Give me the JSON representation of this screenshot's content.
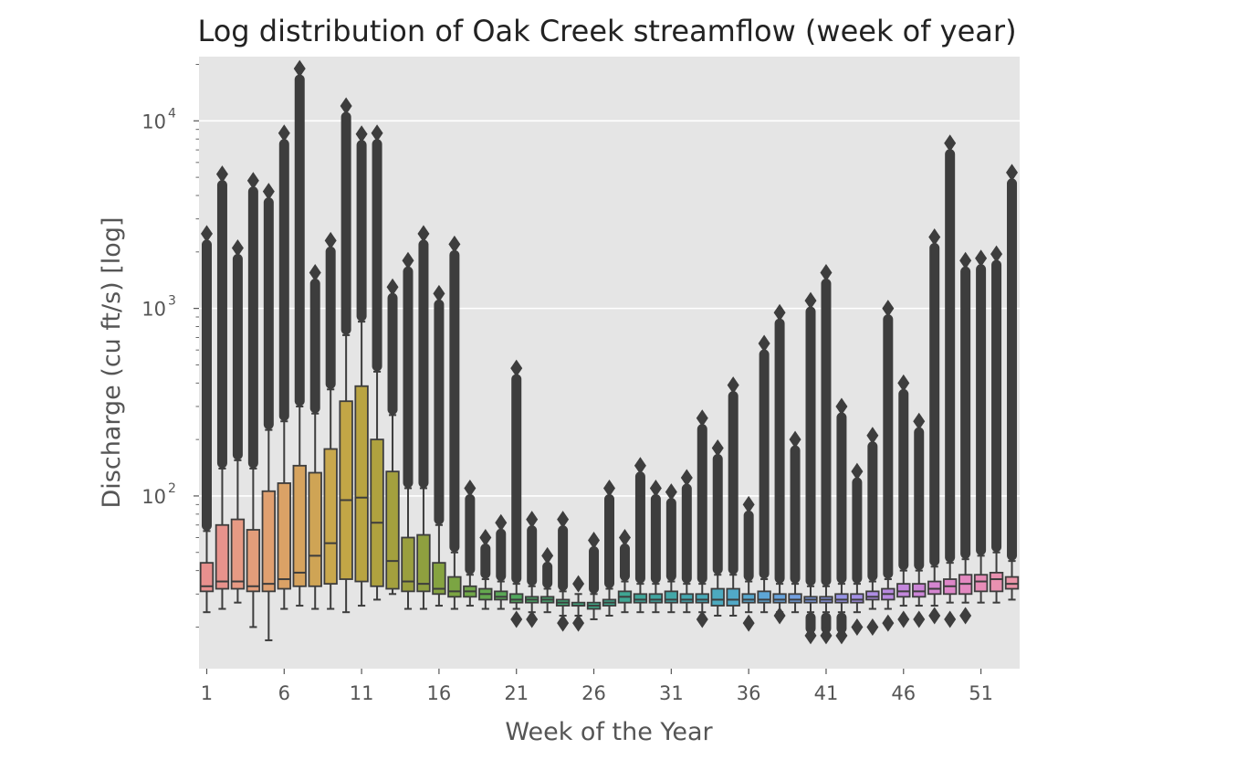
{
  "chart_data": {
    "type": "box",
    "title": "Log distribution of Oak Creek streamflow (week of year)",
    "xlabel": "Week of the Year",
    "ylabel": "Discharge (cu ft/s) [log]",
    "yscale": "log",
    "ylim": [
      12,
      22000
    ],
    "y_ticks": [
      {
        "value": 100,
        "base": "10",
        "exp": "2"
      },
      {
        "value": 1000,
        "base": "10",
        "exp": "3"
      },
      {
        "value": 10000,
        "base": "10",
        "exp": "4"
      }
    ],
    "x_tick_labels": [
      "1",
      "6",
      "11",
      "16",
      "21",
      "26",
      "31",
      "36",
      "41",
      "46",
      "51"
    ],
    "grid": true,
    "background": "#e5e5e5",
    "outlier_color": "#3d3d3d",
    "boxes": [
      {
        "week": 1,
        "q1": 31,
        "median": 33,
        "q3": 44,
        "lo": 24,
        "hi": 65,
        "hi_out": 2500,
        "lo_out": null,
        "color": "#e8908e"
      },
      {
        "week": 2,
        "q1": 32,
        "median": 35,
        "q3": 70,
        "lo": 25,
        "hi": 140,
        "hi_out": 5200,
        "lo_out": null,
        "color": "#e7928c"
      },
      {
        "week": 3,
        "q1": 32,
        "median": 35,
        "q3": 75,
        "lo": 27,
        "hi": 155,
        "hi_out": 2100,
        "lo_out": null,
        "color": "#e79a84"
      },
      {
        "week": 4,
        "q1": 31,
        "median": 33,
        "q3": 66,
        "lo": 20,
        "hi": 140,
        "hi_out": 4800,
        "lo_out": null,
        "color": "#e29d7a"
      },
      {
        "week": 5,
        "q1": 31,
        "median": 34,
        "q3": 106,
        "lo": 17,
        "hi": 225,
        "hi_out": 4200,
        "lo_out": null,
        "color": "#e0a070"
      },
      {
        "week": 6,
        "q1": 32,
        "median": 36,
        "q3": 117,
        "lo": 25,
        "hi": 250,
        "hi_out": 8600,
        "lo_out": null,
        "color": "#dba266"
      },
      {
        "week": 7,
        "q1": 33,
        "median": 39,
        "q3": 145,
        "lo": 26,
        "hi": 300,
        "hi_out": 19000,
        "lo_out": null,
        "color": "#d6a35e"
      },
      {
        "week": 8,
        "q1": 33,
        "median": 48,
        "q3": 133,
        "lo": 25,
        "hi": 275,
        "hi_out": 1550,
        "lo_out": null,
        "color": "#cfa455"
      },
      {
        "week": 9,
        "q1": 34,
        "median": 56,
        "q3": 178,
        "lo": 25,
        "hi": 370,
        "hi_out": 2300,
        "lo_out": null,
        "color": "#c9a84d"
      },
      {
        "week": 10,
        "q1": 36,
        "median": 95,
        "q3": 320,
        "lo": 24,
        "hi": 720,
        "hi_out": 12000,
        "lo_out": null,
        "color": "#c2a646"
      },
      {
        "week": 11,
        "q1": 35,
        "median": 98,
        "q3": 385,
        "lo": 26,
        "hi": 850,
        "hi_out": 8500,
        "lo_out": null,
        "color": "#b9a442"
      },
      {
        "week": 12,
        "q1": 33,
        "median": 72,
        "q3": 200,
        "lo": 28,
        "hi": 460,
        "hi_out": 8600,
        "lo_out": null,
        "color": "#afa23f"
      },
      {
        "week": 13,
        "q1": 32,
        "median": 45,
        "q3": 135,
        "lo": 30,
        "hi": 270,
        "hi_out": 1300,
        "lo_out": null,
        "color": "#a4a03e"
      },
      {
        "week": 14,
        "q1": 31,
        "median": 35,
        "q3": 60,
        "lo": 25,
        "hi": 110,
        "hi_out": 1800,
        "lo_out": null,
        "color": "#9a9f3e"
      },
      {
        "week": 15,
        "q1": 31,
        "median": 34,
        "q3": 62,
        "lo": 25,
        "hi": 110,
        "hi_out": 2500,
        "lo_out": null,
        "color": "#8fa03f"
      },
      {
        "week": 16,
        "q1": 30,
        "median": 32,
        "q3": 44,
        "lo": 26,
        "hi": 70,
        "hi_out": 1200,
        "lo_out": null,
        "color": "#86a340"
      },
      {
        "week": 17,
        "q1": 29,
        "median": 31,
        "q3": 37,
        "lo": 25,
        "hi": 50,
        "hi_out": 2200,
        "lo_out": null,
        "color": "#7ba543"
      },
      {
        "week": 18,
        "q1": 29,
        "median": 31,
        "q3": 33,
        "lo": 26,
        "hi": 38,
        "hi_out": 110,
        "lo_out": null,
        "color": "#70a748"
      },
      {
        "week": 19,
        "q1": 28,
        "median": 30,
        "q3": 32,
        "lo": 25,
        "hi": 36,
        "hi_out": 60,
        "lo_out": null,
        "color": "#64a84f"
      },
      {
        "week": 20,
        "q1": 28,
        "median": 29,
        "q3": 31,
        "lo": 25,
        "hi": 35,
        "hi_out": 72,
        "lo_out": null,
        "color": "#5aa856"
      },
      {
        "week": 21,
        "q1": 27,
        "median": 28,
        "q3": 30,
        "lo": 25,
        "hi": 34,
        "hi_out": 480,
        "lo_out": 22,
        "color": "#52a85e"
      },
      {
        "week": 22,
        "q1": 27,
        "median": 28,
        "q3": 29,
        "lo": 24,
        "hi": 33,
        "hi_out": 75,
        "lo_out": 22,
        "color": "#4ba866"
      },
      {
        "week": 23,
        "q1": 27,
        "median": 28,
        "q3": 29,
        "lo": 24,
        "hi": 32,
        "hi_out": 48,
        "lo_out": null,
        "color": "#46a86e"
      },
      {
        "week": 24,
        "q1": 26,
        "median": 27,
        "q3": 28,
        "lo": 23,
        "hi": 31,
        "hi_out": 75,
        "lo_out": 21,
        "color": "#43a876"
      },
      {
        "week": 25,
        "q1": 26,
        "median": 26,
        "q3": 27,
        "lo": 23,
        "hi": 30,
        "hi_out": 34,
        "lo_out": 21,
        "color": "#41a77e"
      },
      {
        "week": 26,
        "q1": 25,
        "median": 26,
        "q3": 27,
        "lo": 22,
        "hi": 30,
        "hi_out": 58,
        "lo_out": null,
        "color": "#40a685"
      },
      {
        "week": 27,
        "q1": 26,
        "median": 27,
        "q3": 28,
        "lo": 23,
        "hi": 32,
        "hi_out": 110,
        "lo_out": null,
        "color": "#3fa68c"
      },
      {
        "week": 28,
        "q1": 27,
        "median": 29,
        "q3": 31,
        "lo": 24,
        "hi": 35,
        "hi_out": 60,
        "lo_out": null,
        "color": "#3fa693"
      },
      {
        "week": 29,
        "q1": 27,
        "median": 28,
        "q3": 30,
        "lo": 24,
        "hi": 34,
        "hi_out": 145,
        "lo_out": null,
        "color": "#40a69a"
      },
      {
        "week": 30,
        "q1": 27,
        "median": 28,
        "q3": 30,
        "lo": 24,
        "hi": 34,
        "hi_out": 110,
        "lo_out": null,
        "color": "#41a6a1"
      },
      {
        "week": 31,
        "q1": 27,
        "median": 28,
        "q3": 31,
        "lo": 24,
        "hi": 35,
        "hi_out": 105,
        "lo_out": null,
        "color": "#43a7a8"
      },
      {
        "week": 32,
        "q1": 27,
        "median": 28,
        "q3": 30,
        "lo": 24,
        "hi": 34,
        "hi_out": 125,
        "lo_out": null,
        "color": "#45a8b0"
      },
      {
        "week": 33,
        "q1": 27,
        "median": 28,
        "q3": 30,
        "lo": 24,
        "hi": 34,
        "hi_out": 260,
        "lo_out": 22,
        "color": "#48a9b7"
      },
      {
        "week": 34,
        "q1": 26,
        "median": 28,
        "q3": 32,
        "lo": 23,
        "hi": 38,
        "hi_out": 180,
        "lo_out": null,
        "color": "#4caabf"
      },
      {
        "week": 35,
        "q1": 26,
        "median": 28,
        "q3": 32,
        "lo": 23,
        "hi": 38,
        "hi_out": 390,
        "lo_out": null,
        "color": "#51a9c7"
      },
      {
        "week": 36,
        "q1": 27,
        "median": 28,
        "q3": 30,
        "lo": 24,
        "hi": 35,
        "hi_out": 90,
        "lo_out": 21,
        "color": "#57a8cf"
      },
      {
        "week": 37,
        "q1": 27,
        "median": 28,
        "q3": 31,
        "lo": 24,
        "hi": 36,
        "hi_out": 650,
        "lo_out": null,
        "color": "#5ea6d6"
      },
      {
        "week": 38,
        "q1": 27,
        "median": 28,
        "q3": 30,
        "lo": 24,
        "hi": 34,
        "hi_out": 950,
        "lo_out": 23,
        "color": "#67a3dc"
      },
      {
        "week": 39,
        "q1": 27,
        "median": 28,
        "q3": 30,
        "lo": 24,
        "hi": 34,
        "hi_out": 200,
        "lo_out": null,
        "color": "#72a0e0"
      },
      {
        "week": 40,
        "q1": 27,
        "median": 28,
        "q3": 29,
        "lo": 24,
        "hi": 33,
        "hi_out": 1100,
        "lo_out": 18,
        "color": "#7e9ce3"
      },
      {
        "week": 41,
        "q1": 27,
        "median": 28,
        "q3": 29,
        "lo": 24,
        "hi": 33,
        "hi_out": 1550,
        "lo_out": 18,
        "color": "#8a98e5"
      },
      {
        "week": 42,
        "q1": 27,
        "median": 28,
        "q3": 30,
        "lo": 24,
        "hi": 34,
        "hi_out": 300,
        "lo_out": 18,
        "color": "#9794e6"
      },
      {
        "week": 43,
        "q1": 27,
        "median": 28,
        "q3": 30,
        "lo": 24,
        "hi": 34,
        "hi_out": 135,
        "lo_out": 20,
        "color": "#a390e5"
      },
      {
        "week": 44,
        "q1": 28,
        "median": 29,
        "q3": 31,
        "lo": 25,
        "hi": 35,
        "hi_out": 210,
        "lo_out": 20,
        "color": "#ae8de3"
      },
      {
        "week": 45,
        "q1": 28,
        "median": 30,
        "q3": 32,
        "lo": 25,
        "hi": 36,
        "hi_out": 1000,
        "lo_out": 21,
        "color": "#b98ae0"
      },
      {
        "week": 46,
        "q1": 29,
        "median": 31,
        "q3": 34,
        "lo": 26,
        "hi": 40,
        "hi_out": 400,
        "lo_out": 22,
        "color": "#c387dc"
      },
      {
        "week": 47,
        "q1": 29,
        "median": 31,
        "q3": 34,
        "lo": 26,
        "hi": 40,
        "hi_out": 250,
        "lo_out": 22,
        "color": "#cc85d7"
      },
      {
        "week": 48,
        "q1": 30,
        "median": 32,
        "q3": 35,
        "lo": 26,
        "hi": 42,
        "hi_out": 2400,
        "lo_out": 23,
        "color": "#d585d0"
      },
      {
        "week": 49,
        "q1": 30,
        "median": 33,
        "q3": 36,
        "lo": 27,
        "hi": 44,
        "hi_out": 7600,
        "lo_out": 22,
        "color": "#dd86c8"
      },
      {
        "week": 50,
        "q1": 30,
        "median": 34,
        "q3": 38,
        "lo": 27,
        "hi": 46,
        "hi_out": 1800,
        "lo_out": 23,
        "color": "#e389c0"
      },
      {
        "week": 51,
        "q1": 31,
        "median": 35,
        "q3": 38,
        "lo": 27,
        "hi": 48,
        "hi_out": 1850,
        "lo_out": null,
        "color": "#e78db8"
      },
      {
        "week": 52,
        "q1": 31,
        "median": 36,
        "q3": 39,
        "lo": 27,
        "hi": 50,
        "hi_out": 1950,
        "lo_out": null,
        "color": "#e991b0"
      },
      {
        "week": 53,
        "q1": 32,
        "median": 34,
        "q3": 37,
        "lo": 28,
        "hi": 45,
        "hi_out": 5300,
        "lo_out": null,
        "color": "#ea94a8"
      }
    ]
  }
}
